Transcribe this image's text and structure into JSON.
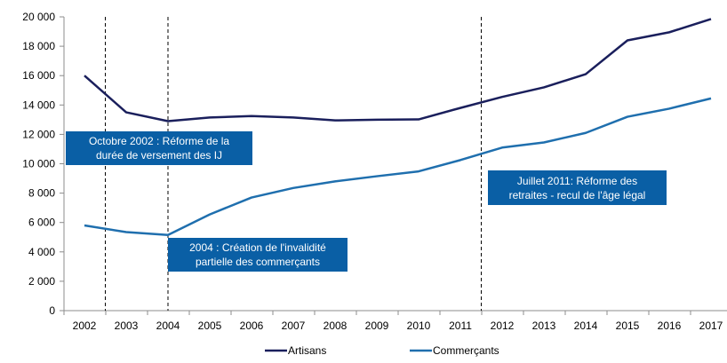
{
  "chart_data": {
    "type": "line",
    "categories": [
      "2002",
      "2003",
      "2004",
      "2005",
      "2006",
      "2007",
      "2008",
      "2009",
      "2010",
      "2011",
      "2012",
      "2013",
      "2014",
      "2015",
      "2016",
      "2017"
    ],
    "series": [
      {
        "name": "Artisans",
        "color": "#1a1f5c",
        "values": [
          16000,
          13500,
          12900,
          13150,
          13250,
          13150,
          12950,
          13000,
          13020,
          13800,
          14550,
          15200,
          16100,
          18400,
          18950,
          19850
        ]
      },
      {
        "name": "Commerçants",
        "color": "#1f6fae",
        "values": [
          5800,
          5350,
          5150,
          6550,
          7700,
          8350,
          8800,
          9150,
          9480,
          10250,
          11100,
          11450,
          12100,
          13200,
          13750,
          14450
        ]
      }
    ],
    "ylim": [
      0,
      20000
    ],
    "yticks": [
      0,
      2000,
      4000,
      6000,
      8000,
      10000,
      12000,
      14000,
      16000,
      18000,
      20000
    ],
    "ytick_labels": [
      "0",
      "2 000",
      "4 000",
      "6 000",
      "8 000",
      "10 000",
      "12 000",
      "14 000",
      "16 000",
      "18 000",
      "20 000"
    ],
    "xlabel": "",
    "ylabel": "",
    "grid": false,
    "legend_position": "bottom",
    "annotation_color": "#0a5fa5",
    "events": [
      {
        "label": "Octobre 2002 : Réforme de la\ndurée de versement des IJ",
        "x": 2002.5
      },
      {
        "label": "2004 : Création de l'invalidité\npartielle des commerçants",
        "x": 2004
      },
      {
        "label": "Juillet 2011: Réforme des\nretraites - recul de l'âge légal",
        "x": 2011.5
      }
    ]
  }
}
